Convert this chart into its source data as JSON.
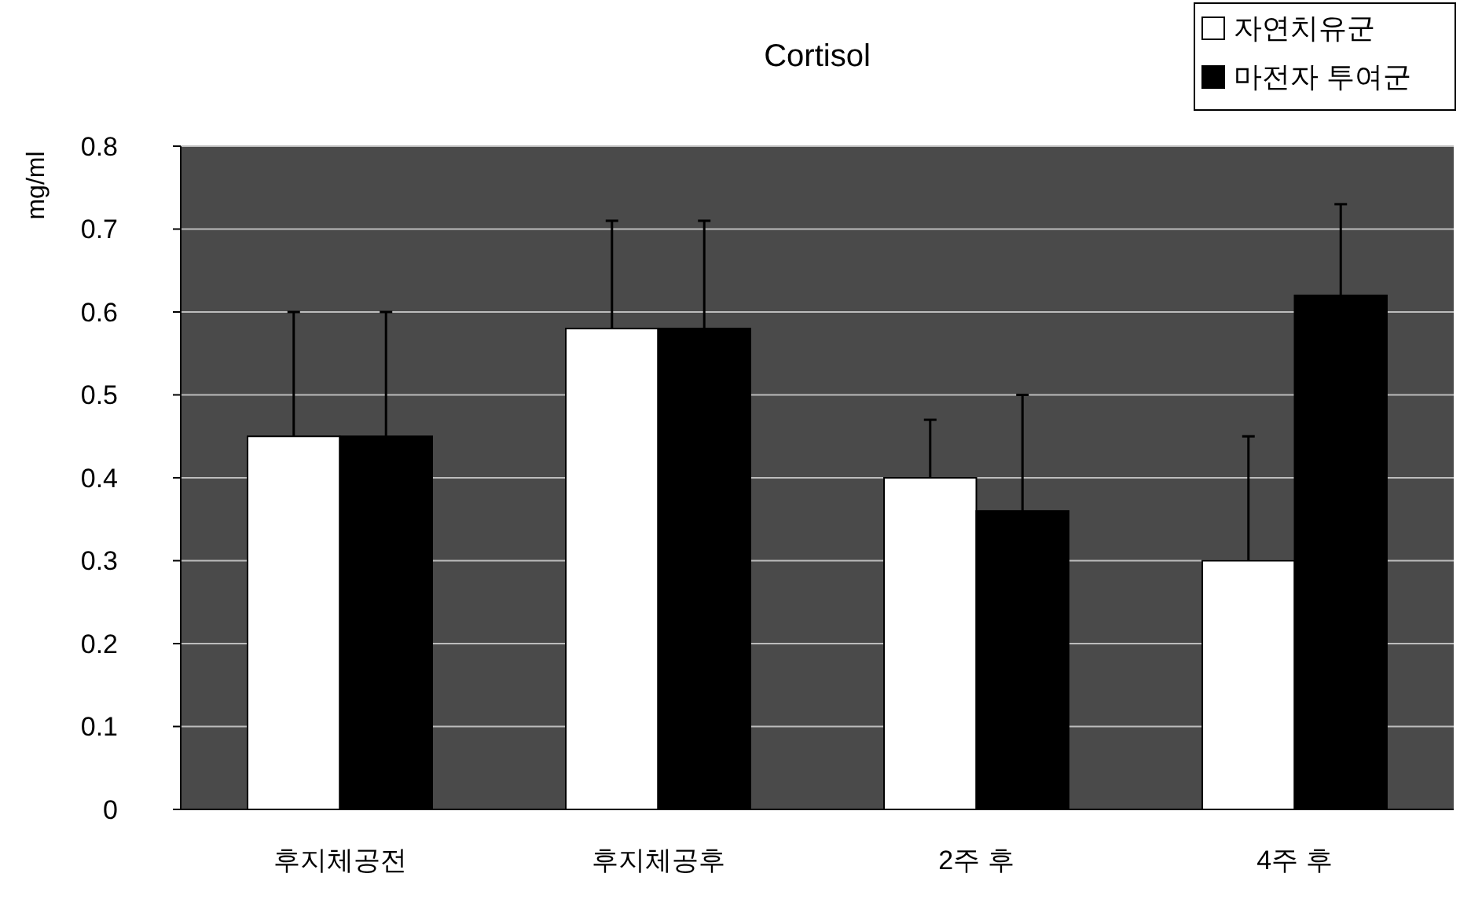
{
  "chart_data": {
    "type": "bar",
    "title": "Cortisol",
    "ylabel": "mg/ml",
    "categories": [
      "후지체공전",
      "후지체공후",
      "2주 후",
      "4주 후"
    ],
    "series": [
      {
        "name": "자연치유군",
        "color": "#ffffff",
        "values": [
          0.45,
          0.58,
          0.4,
          0.3
        ],
        "errors": [
          [
            0.45,
            0.6
          ],
          [
            0.58,
            0.71
          ],
          [
            0.4,
            0.47
          ],
          [
            0.3,
            0.45
          ]
        ]
      },
      {
        "name": "마전자 투여군",
        "color": "#000000",
        "values": [
          0.45,
          0.58,
          0.36,
          0.62
        ],
        "errors": [
          [
            0.45,
            0.6
          ],
          [
            0.58,
            0.71
          ],
          [
            0.36,
            0.5
          ],
          [
            0.62,
            0.73
          ]
        ]
      }
    ],
    "ylim": [
      0,
      0.8
    ],
    "yticks": [
      0,
      0.1,
      0.2,
      0.3,
      0.4,
      0.5,
      0.6,
      0.7,
      0.8
    ],
    "grid": "y",
    "legend": "top right"
  }
}
